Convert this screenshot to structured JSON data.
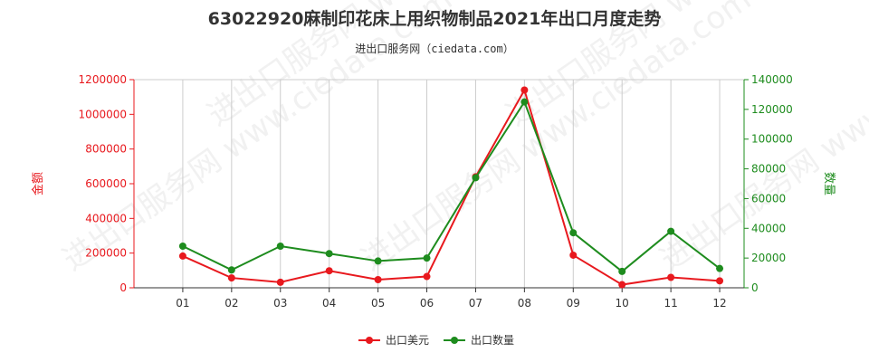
{
  "chart_data": {
    "type": "line",
    "title": "63022920麻制印花床上用织物制品2021年出口月度走势",
    "subtitle": "进出口服务网（ciedata.com）",
    "watermark": "进出口服务网 www.ciedata.com",
    "categories": [
      "01",
      "02",
      "03",
      "04",
      "05",
      "06",
      "07",
      "08",
      "09",
      "10",
      "11",
      "12"
    ],
    "ylabel_left": "金额",
    "ylabel_right": "数量",
    "ylim_left": [
      0,
      1200000
    ],
    "ylim_right": [
      0,
      140000
    ],
    "yticks_left": [
      "0",
      "200000",
      "400000",
      "600000",
      "800000",
      "1000000",
      "1200000"
    ],
    "yticks_right": [
      "0",
      "20000",
      "40000",
      "60000",
      "80000",
      "100000",
      "120000",
      "140000"
    ],
    "grid": "vertical",
    "legend_position": "bottom-center",
    "series": [
      {
        "name": "出口美元",
        "axis": "left",
        "color": "#e8191e",
        "values": [
          183000,
          57000,
          32000,
          98000,
          47000,
          65000,
          640000,
          1140000,
          188000,
          18000,
          60000,
          40000
        ]
      },
      {
        "name": "出口数量",
        "axis": "right",
        "color": "#1e8c1e",
        "values": [
          28000,
          12000,
          28000,
          23000,
          18000,
          20000,
          74000,
          125000,
          37000,
          11000,
          38000,
          13000
        ]
      }
    ],
    "left_axis_color": "#e8191e",
    "right_axis_color": "#1e8c1e"
  }
}
